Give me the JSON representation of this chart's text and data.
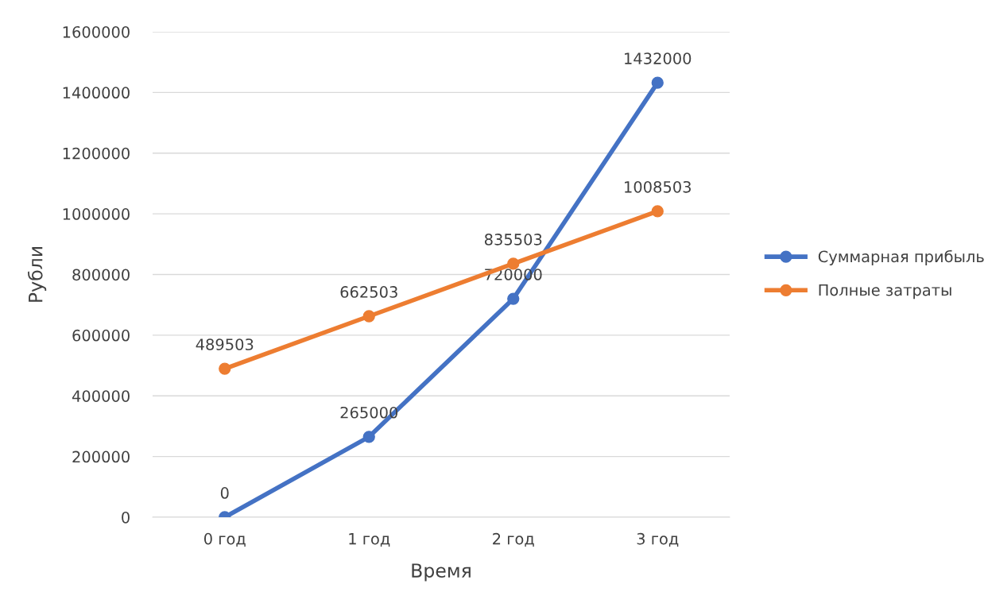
{
  "chart_data": {
    "type": "line",
    "xlabel": "Время",
    "ylabel": "Рубли",
    "categories": [
      "0 год",
      "1 год",
      "2 год",
      "3 год"
    ],
    "series": [
      {
        "name": "Суммарная прибыль",
        "color": "#4472c4",
        "values": [
          0,
          265000,
          720000,
          1432000
        ]
      },
      {
        "name": "Полные затраты",
        "color": "#ed7d31",
        "values": [
          489503,
          662503,
          835503,
          1008503
        ]
      }
    ],
    "ylim": [
      0,
      1600000
    ],
    "yticks": [
      0,
      200000,
      400000,
      600000,
      800000,
      1000000,
      1200000,
      1400000,
      1600000
    ],
    "grid": "y",
    "legend": "right",
    "marker": "circle",
    "line_style": "solid",
    "data_labels": true
  }
}
